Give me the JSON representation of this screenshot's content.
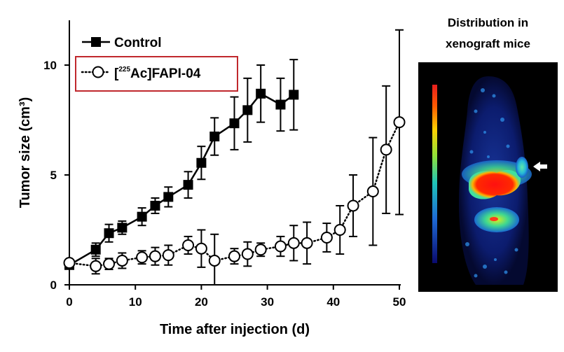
{
  "chart_data": {
    "type": "line",
    "xlabel": "Time after injection (d)",
    "ylabel": "Tumor size (cm³)",
    "xlim": [
      0,
      50
    ],
    "ylim": [
      0,
      12
    ],
    "xticks": [
      0,
      10,
      20,
      30,
      40,
      50
    ],
    "yticks": [
      0,
      5,
      10
    ],
    "grid": false,
    "legend_position": "top-left",
    "series": [
      {
        "name": "Control",
        "marker": "filled-square",
        "line": "solid",
        "color": "#000000",
        "x": [
          0,
          4,
          6,
          8,
          11,
          13,
          15,
          18,
          20,
          22,
          25,
          27,
          29,
          32,
          34
        ],
        "y": [
          0.9,
          1.6,
          2.35,
          2.6,
          3.1,
          3.6,
          4.0,
          4.55,
          5.55,
          6.75,
          7.35,
          7.95,
          8.7,
          8.2,
          8.65
        ],
        "error": [
          0.1,
          0.3,
          0.4,
          0.3,
          0.4,
          0.35,
          0.45,
          0.6,
          0.75,
          0.85,
          1.2,
          1.45,
          1.3,
          1.2,
          1.6
        ]
      },
      {
        "name": "[225Ac]FAPI-04",
        "legend_prefix": "[",
        "legend_superscript": "225",
        "legend_suffix": "Ac]FAPI-04",
        "marker": "open-circle",
        "line": "dotted",
        "color": "#000000",
        "x": [
          0,
          4,
          6,
          8,
          11,
          13,
          15,
          18,
          20,
          22,
          25,
          27,
          29,
          32,
          34,
          36,
          39,
          41,
          43,
          46,
          48,
          50
        ],
        "y": [
          1.0,
          0.85,
          0.95,
          1.1,
          1.25,
          1.3,
          1.35,
          1.8,
          1.65,
          1.1,
          1.3,
          1.4,
          1.6,
          1.75,
          1.9,
          1.9,
          2.15,
          2.5,
          3.6,
          4.25,
          6.15,
          7.4
        ],
        "error": [
          0.15,
          0.35,
          0.25,
          0.35,
          0.3,
          0.4,
          0.45,
          0.4,
          0.85,
          1.2,
          0.35,
          0.55,
          0.3,
          0.45,
          0.8,
          0.95,
          0.65,
          1.1,
          1.4,
          2.45,
          2.9,
          4.2
        ]
      }
    ]
  },
  "side_panel": {
    "title_line1": "Distribution in",
    "title_line2": "xenograft mice"
  },
  "colors": {
    "legend_highlight_box": "#c0282d",
    "scan_background": "#000000"
  }
}
